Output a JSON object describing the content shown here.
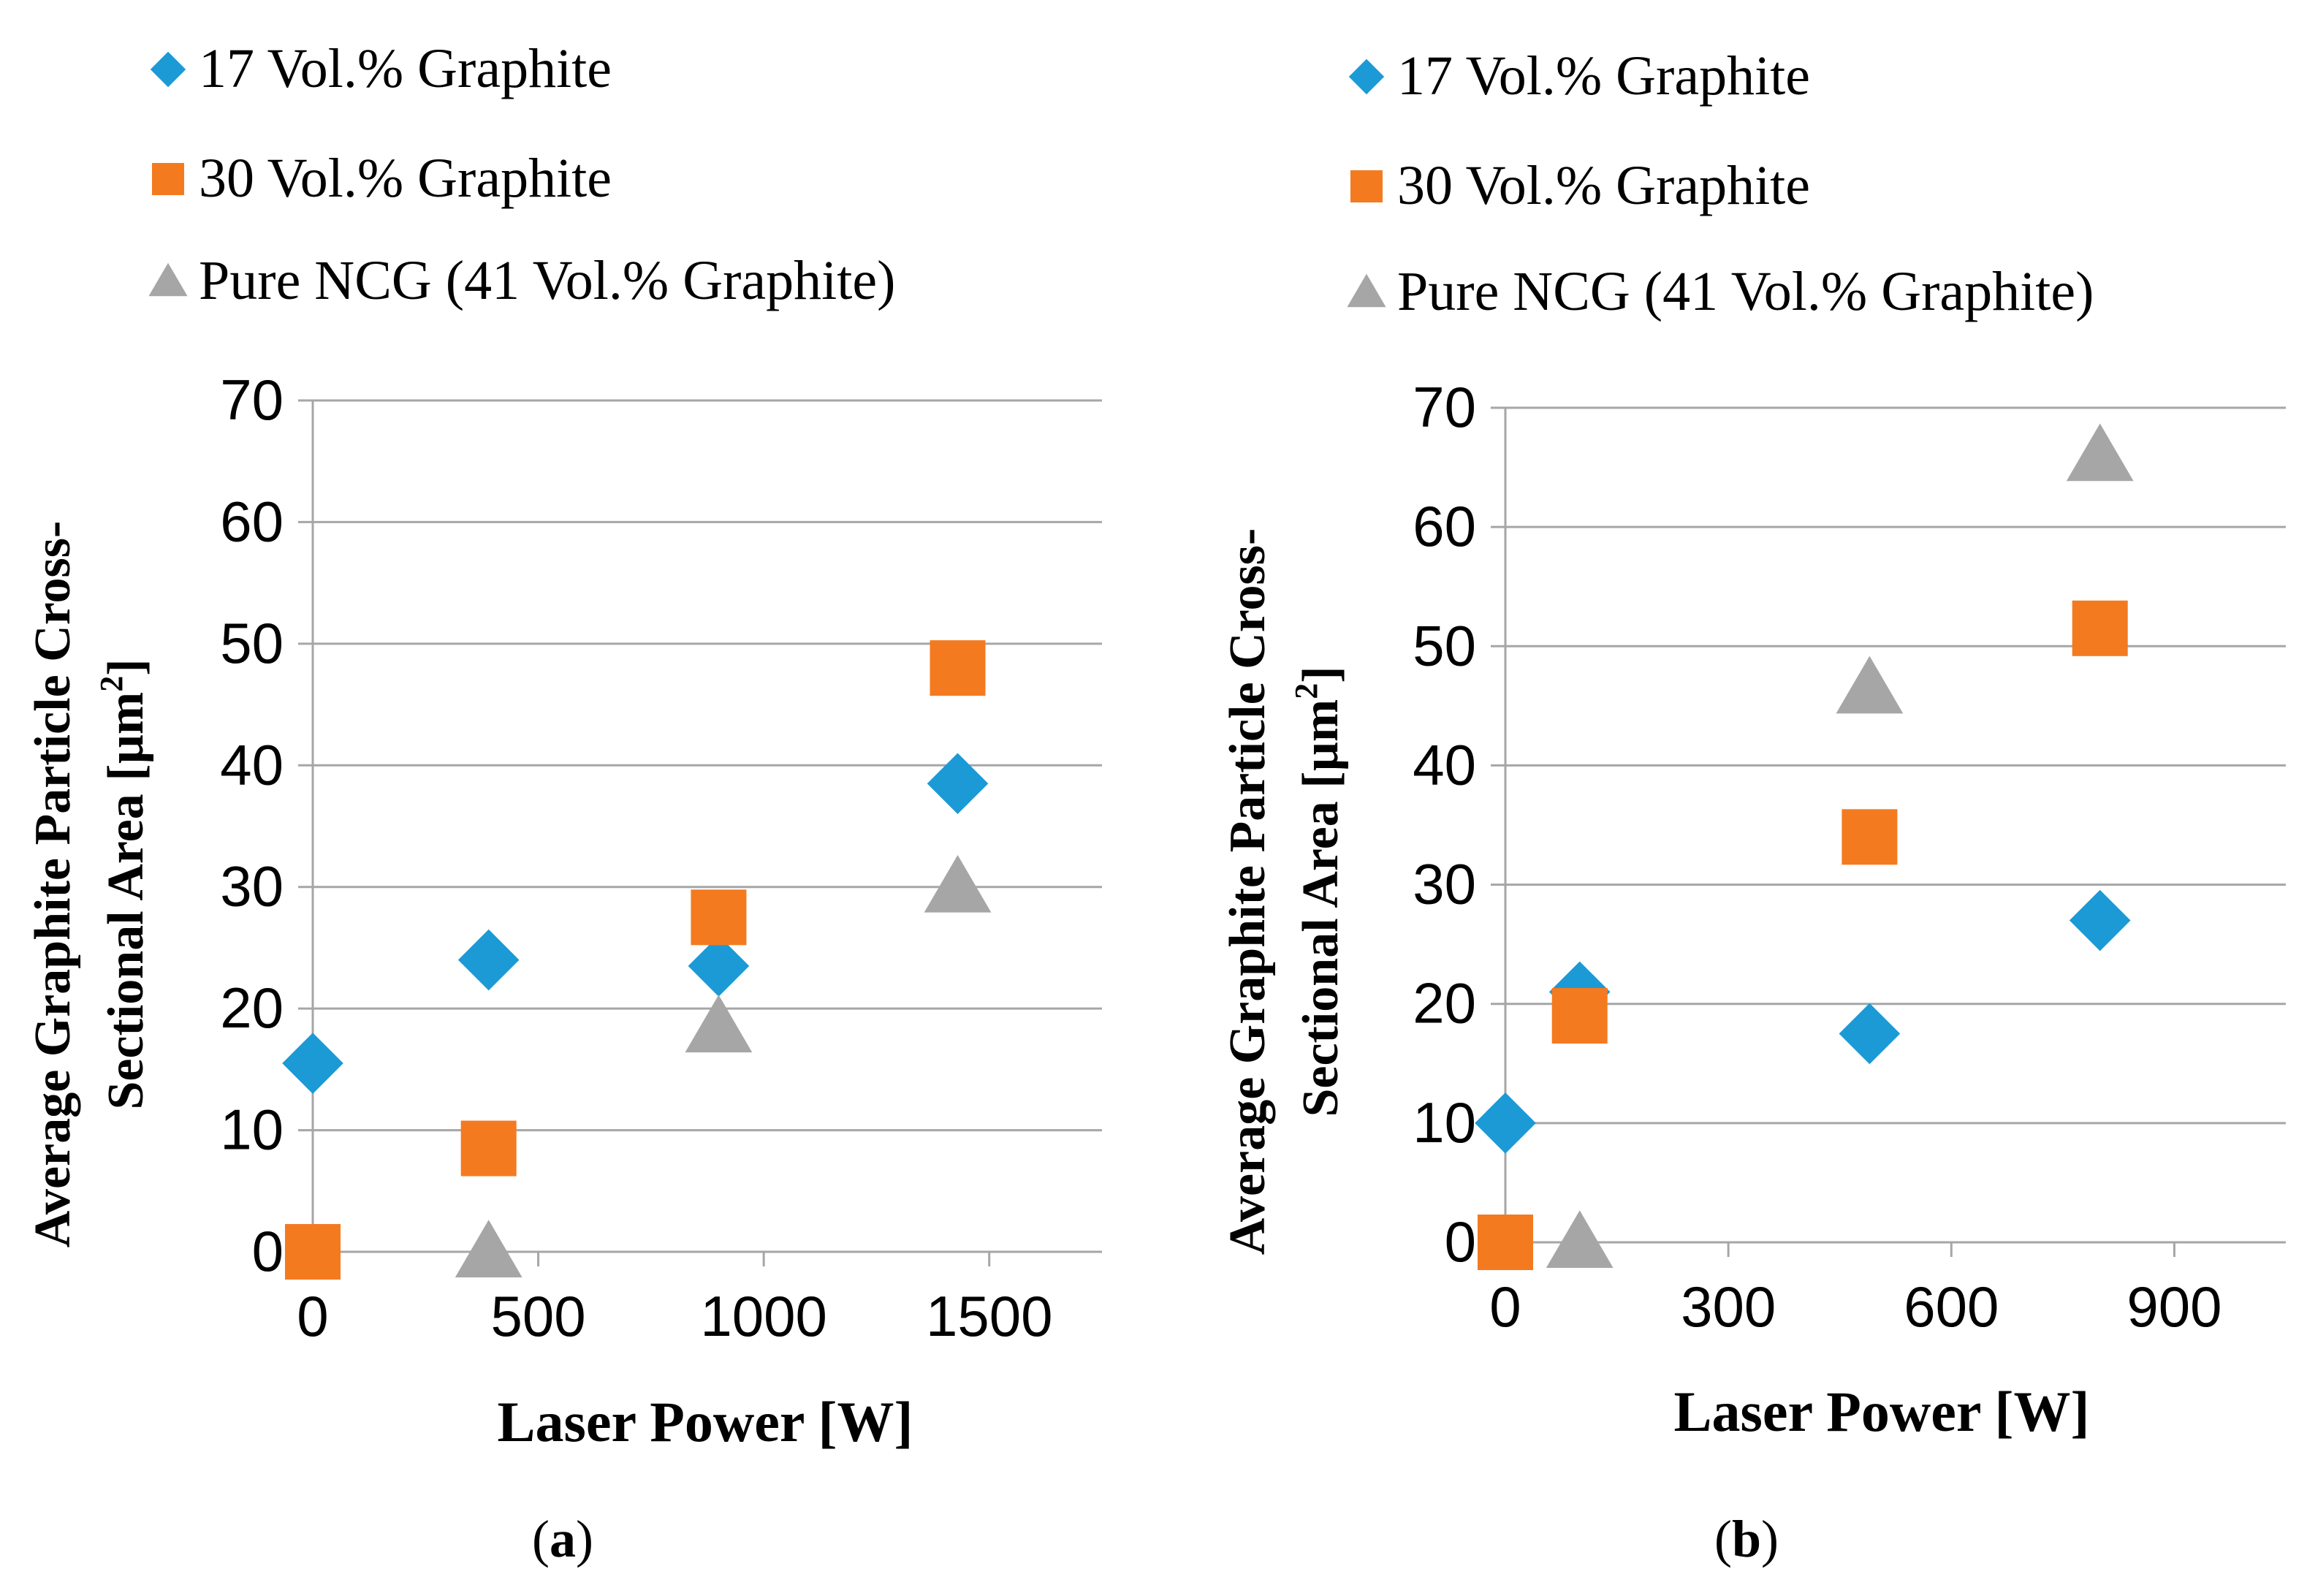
{
  "colors": {
    "s17": "#1B9AD6",
    "s30": "#F47A20",
    "pure": "#A6A6A6",
    "grid": "#A6A6A6",
    "text": "#000000"
  },
  "chart_data": [
    {
      "type": "scatter",
      "panel_label": "a",
      "xlabel": "Laser Power [W]",
      "ylabel_line1": "Average Graphite Particle Cross-",
      "ylabel_line2_prefix": "Sectional Area [µm",
      "ylabel_sup": "2",
      "ylabel_suffix": "]",
      "xlim": [
        0,
        1750
      ],
      "ylim": [
        0,
        70
      ],
      "xticks": [
        0,
        500,
        1000,
        1500
      ],
      "yticks": [
        0,
        10,
        20,
        30,
        40,
        50,
        60,
        70
      ],
      "legend_position": "top-left",
      "series": [
        {
          "key": "s17",
          "name": "17 Vol.% Graphite",
          "marker": "diamond",
          "x": [
            0,
            390,
            900,
            1430
          ],
          "y": [
            15.5,
            24,
            23.5,
            38.5
          ]
        },
        {
          "key": "s30",
          "name": "30 Vol.% Graphite",
          "marker": "square",
          "x": [
            0,
            390,
            900,
            1430
          ],
          "y": [
            0,
            8.5,
            27.5,
            48
          ]
        },
        {
          "key": "pure",
          "name": "Pure NCG (41 Vol.% Graphite)",
          "marker": "triangle",
          "x": [
            390,
            900,
            1430
          ],
          "y": [
            0,
            18.5,
            30
          ]
        }
      ]
    },
    {
      "type": "scatter",
      "panel_label": "b",
      "xlabel": "Laser Power [W]",
      "ylabel_line1": "Average Graphite Particle Cross-",
      "ylabel_line2_prefix": "Sectional Area [µm",
      "ylabel_sup": "2",
      "ylabel_suffix": "]",
      "xlim": [
        0,
        1050
      ],
      "ylim": [
        0,
        70
      ],
      "xticks": [
        0,
        300,
        600,
        900
      ],
      "yticks": [
        0,
        10,
        20,
        30,
        40,
        50,
        60,
        70
      ],
      "legend_position": "top-left",
      "series": [
        {
          "key": "s17",
          "name": "17 Vol.% Graphite",
          "marker": "diamond",
          "x": [
            0,
            100,
            490,
            800
          ],
          "y": [
            10,
            21,
            17.5,
            27
          ]
        },
        {
          "key": "s30",
          "name": "30 Vol.% Graphite",
          "marker": "square",
          "x": [
            0,
            100,
            490,
            800
          ],
          "y": [
            0,
            19,
            34,
            51.5
          ]
        },
        {
          "key": "pure",
          "name": "Pure NCG (41 Vol.% Graphite)",
          "marker": "triangle",
          "x": [
            100,
            490,
            800
          ],
          "y": [
            0,
            46.5,
            66
          ]
        }
      ]
    }
  ]
}
